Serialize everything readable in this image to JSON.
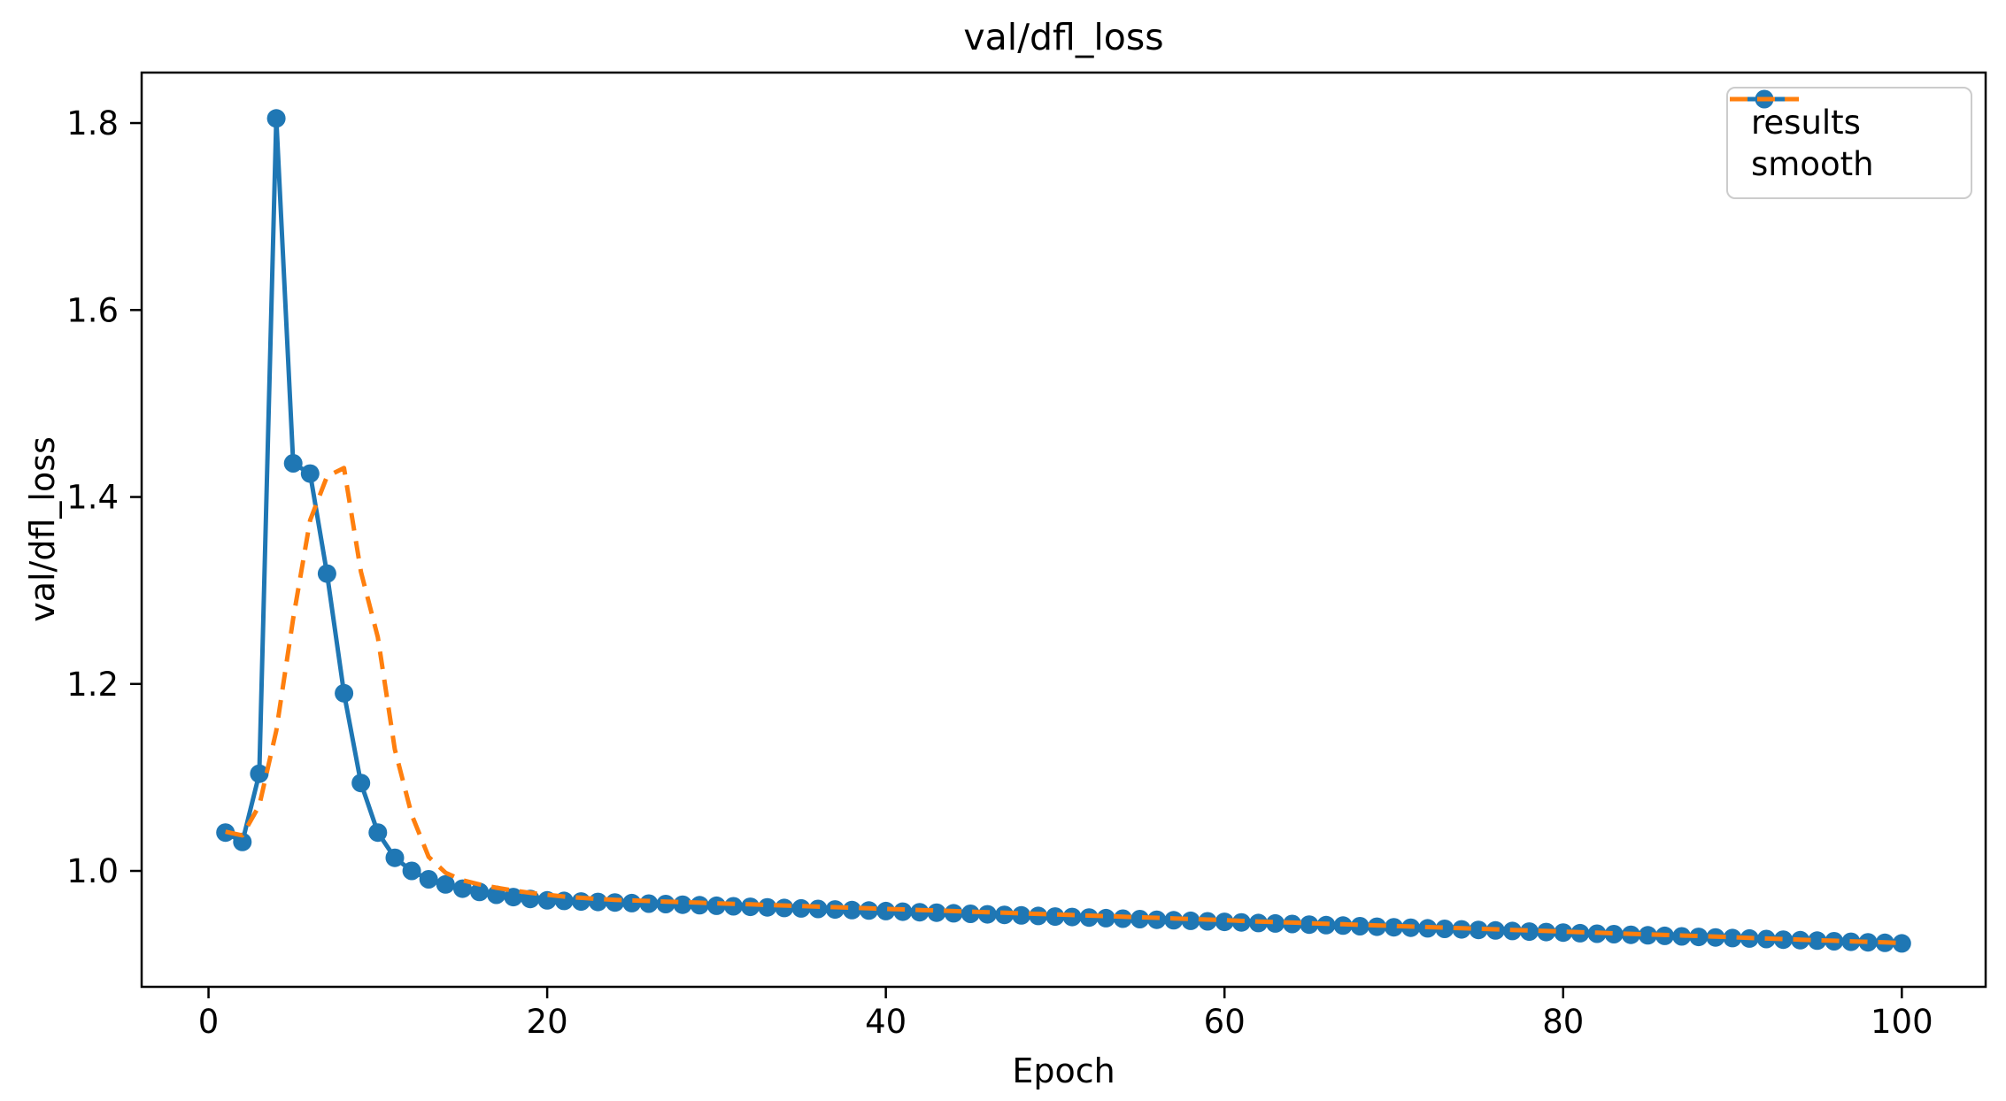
{
  "figure": {
    "title": "val/dfl_loss",
    "xlabel": "Epoch",
    "ylabel": "val/dfl_loss"
  },
  "legend": {
    "items": [
      {
        "label": "results",
        "color": "#1f77b4",
        "style": "solid-line-circle-marker"
      },
      {
        "label": "smooth",
        "color": "#ff7f0e",
        "style": "dashed-line"
      }
    ]
  },
  "chart_data": {
    "type": "line",
    "title": "val/dfl_loss",
    "xlabel": "Epoch",
    "ylabel": "val/dfl_loss",
    "xlim": [
      -3.95,
      104.95
    ],
    "ylim": [
      0.876,
      1.854
    ],
    "x_ticks": [
      0,
      20,
      40,
      60,
      80,
      100
    ],
    "y_ticks": [
      1.0,
      1.2,
      1.4,
      1.6,
      1.8
    ],
    "grid": false,
    "legend_position": "upper right",
    "x": [
      1,
      2,
      3,
      4,
      5,
      6,
      7,
      8,
      9,
      10,
      11,
      12,
      13,
      14,
      15,
      16,
      17,
      18,
      19,
      20,
      21,
      22,
      23,
      24,
      25,
      26,
      27,
      28,
      29,
      30,
      31,
      32,
      33,
      34,
      35,
      36,
      37,
      38,
      39,
      40,
      41,
      42,
      43,
      44,
      45,
      46,
      47,
      48,
      49,
      50,
      51,
      52,
      53,
      54,
      55,
      56,
      57,
      58,
      59,
      60,
      61,
      62,
      63,
      64,
      65,
      66,
      67,
      68,
      69,
      70,
      71,
      72,
      73,
      74,
      75,
      76,
      77,
      78,
      79,
      80,
      81,
      82,
      83,
      84,
      85,
      86,
      87,
      88,
      89,
      90,
      91,
      92,
      93,
      94,
      95,
      96,
      97,
      98,
      99,
      100
    ],
    "series": [
      {
        "name": "results",
        "color": "#1f77b4",
        "line": "solid",
        "marker": "circle",
        "values": [
          1.041,
          1.031,
          1.104,
          1.805,
          1.436,
          1.425,
          1.318,
          1.19,
          1.094,
          1.041,
          1.014,
          1.0,
          0.991,
          0.9855,
          0.981,
          0.9775,
          0.9745,
          0.972,
          0.97,
          0.9685,
          0.9679,
          0.9673,
          0.9668,
          0.9662,
          0.9656,
          0.965,
          0.9645,
          0.9639,
          0.9633,
          0.9627,
          0.9622,
          0.9616,
          0.961,
          0.9604,
          0.9599,
          0.9593,
          0.9587,
          0.9581,
          0.9576,
          0.957,
          0.9564,
          0.9558,
          0.9553,
          0.9547,
          0.9541,
          0.9535,
          0.953,
          0.9524,
          0.9518,
          0.9512,
          0.9507,
          0.9501,
          0.9495,
          0.9489,
          0.9484,
          0.9478,
          0.9472,
          0.9466,
          0.9461,
          0.9455,
          0.9449,
          0.9443,
          0.9438,
          0.9432,
          0.9426,
          0.942,
          0.9415,
          0.9409,
          0.9403,
          0.9397,
          0.9392,
          0.9386,
          0.938,
          0.9374,
          0.9369,
          0.9363,
          0.9357,
          0.9351,
          0.9346,
          0.934,
          0.9334,
          0.9328,
          0.9323,
          0.9317,
          0.9311,
          0.9305,
          0.93,
          0.9294,
          0.9288,
          0.9282,
          0.9277,
          0.9271,
          0.9265,
          0.9259,
          0.9254,
          0.9248,
          0.9242,
          0.9236,
          0.9231,
          0.9225
        ]
      },
      {
        "name": "smooth",
        "color": "#ff7f0e",
        "line": "dashed",
        "marker": "none",
        "values": [
          1.042,
          1.038,
          1.07,
          1.15,
          1.27,
          1.375,
          1.422,
          1.431,
          1.32,
          1.25,
          1.13,
          1.06,
          1.015,
          0.998,
          0.99,
          0.9855,
          0.982,
          0.979,
          0.9765,
          0.9745,
          0.9726,
          0.9712,
          0.97,
          0.9691,
          0.9684,
          0.9678,
          0.9672,
          0.9666,
          0.966,
          0.9654,
          0.9648,
          0.9642,
          0.9636,
          0.963,
          0.9624,
          0.9618,
          0.9612,
          0.9606,
          0.96,
          0.9594,
          0.9588,
          0.9582,
          0.9576,
          0.957,
          0.9564,
          0.9558,
          0.9552,
          0.9546,
          0.954,
          0.9534,
          0.9528,
          0.9522,
          0.9516,
          0.951,
          0.9504,
          0.9498,
          0.9492,
          0.9486,
          0.948,
          0.9474,
          0.9465,
          0.9459,
          0.9453,
          0.9447,
          0.9441,
          0.9435,
          0.9429,
          0.9423,
          0.9417,
          0.9411,
          0.9405,
          0.9399,
          0.9393,
          0.9387,
          0.9381,
          0.9375,
          0.9369,
          0.9363,
          0.9357,
          0.9351,
          0.9345,
          0.9339,
          0.9333,
          0.9327,
          0.9321,
          0.9315,
          0.9309,
          0.9303,
          0.9297,
          0.9291,
          0.9283,
          0.9277,
          0.9271,
          0.9265,
          0.9259,
          0.9253,
          0.9247,
          0.9241,
          0.9235,
          0.9229
        ]
      }
    ]
  }
}
